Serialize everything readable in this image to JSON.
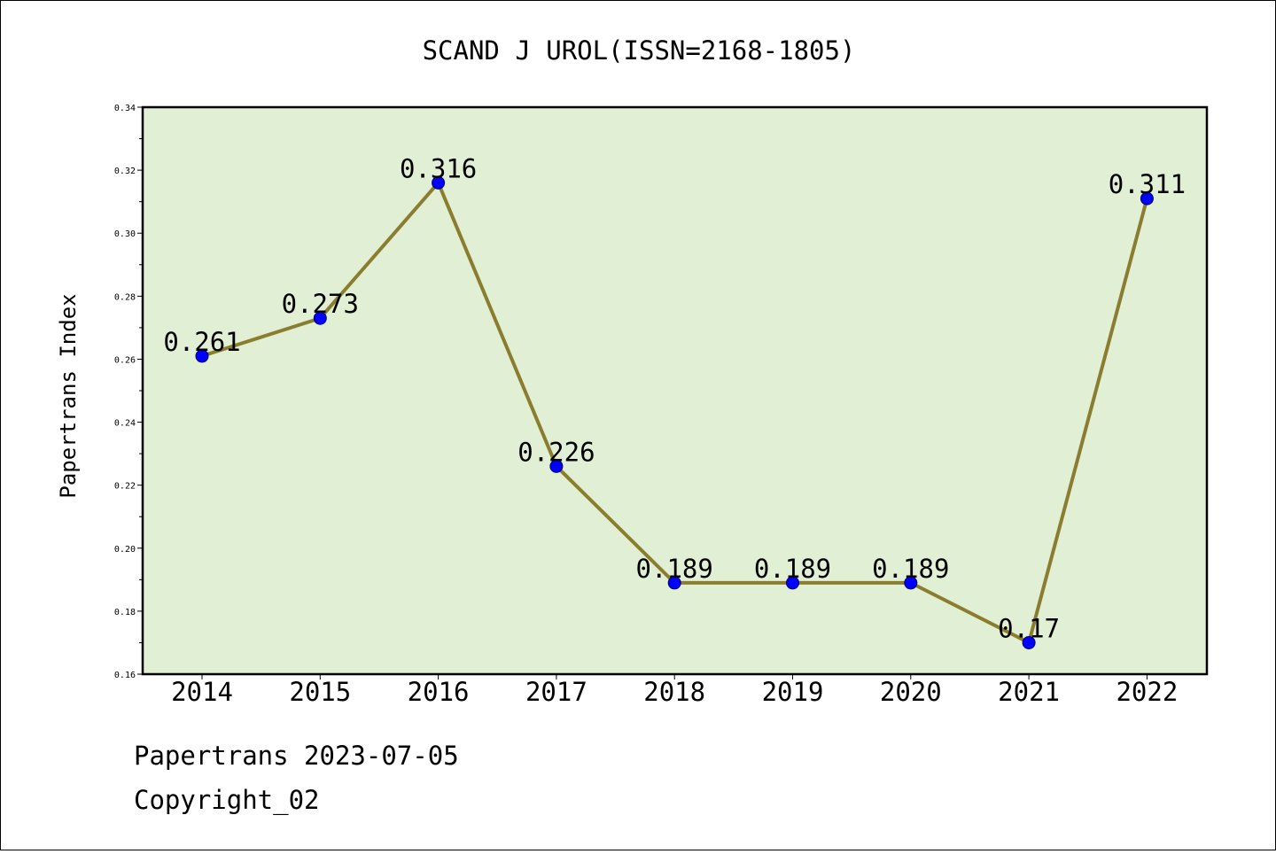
{
  "chart_data": {
    "type": "line",
    "title": "SCAND J UROL(ISSN=2168-1805)",
    "ylabel": "Papertrans Index",
    "xlabel": "",
    "categories": [
      "2014",
      "2015",
      "2016",
      "2017",
      "2018",
      "2019",
      "2020",
      "2021",
      "2022"
    ],
    "values": [
      0.261,
      0.273,
      0.316,
      0.226,
      0.189,
      0.189,
      0.189,
      0.17,
      0.311
    ],
    "data_labels": [
      "0.261",
      "0.273",
      "0.316",
      "0.226",
      "0.189",
      "0.189",
      "0.189",
      "0.17",
      "0.311"
    ],
    "ylim": [
      0.16,
      0.34
    ],
    "yticks": [
      "0.16",
      "0.18",
      "0.20",
      "0.22",
      "0.24",
      "0.26",
      "0.28",
      "0.30",
      "0.32",
      "0.34"
    ],
    "grid": false,
    "colors": {
      "plot_bg": "#e1efd4",
      "line": "#8b7d2f",
      "marker": "#0000ff"
    }
  },
  "footer": {
    "line1": "Papertrans 2023-07-05",
    "line2": "Copyright_02"
  }
}
